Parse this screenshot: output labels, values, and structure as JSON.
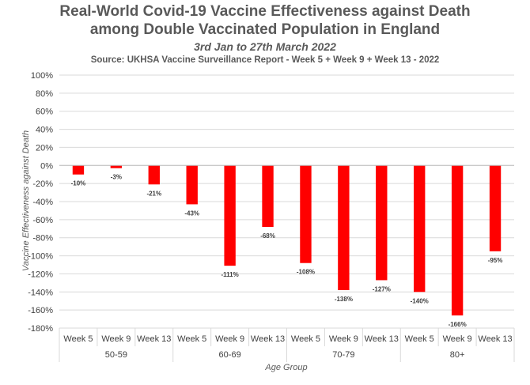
{
  "chart_data": {
    "type": "bar",
    "title": "Real-World Covid-19 Vaccine Effectiveness against Death",
    "title_line2": "among Double Vaccinated Population in England",
    "subtitle": "3rd Jan to 27th March 2022",
    "source": "Source: UKHSA Vaccine Surveillance Report - Week 5 + Week 9 + Week 13 - 2022",
    "xlabel": "Age Group",
    "ylabel": "Vaccine Effectiveness against Death",
    "ylim": [
      -180,
      100
    ],
    "ytick_step": 20,
    "ytick_suffix": "%",
    "grid": true,
    "bar_color": "#ff0000",
    "groups": [
      {
        "name": "50-59",
        "categories": [
          "Week 5",
          "Week 9",
          "Week 13"
        ],
        "values": [
          -10,
          -3,
          -21
        ],
        "labels": [
          "-10%",
          "-3%",
          "-21%"
        ]
      },
      {
        "name": "60-69",
        "categories": [
          "Week 5",
          "Week 9",
          "Week 13"
        ],
        "values": [
          -43,
          -111,
          -68
        ],
        "labels": [
          "-43%",
          "-111%",
          "-68%"
        ]
      },
      {
        "name": "70-79",
        "categories": [
          "Week 5",
          "Week 9",
          "Week 13"
        ],
        "values": [
          -108,
          -138,
          -127
        ],
        "labels": [
          "-108%",
          "-138%",
          "-127%"
        ]
      },
      {
        "name": "80+",
        "categories": [
          "Week 5",
          "Week 9",
          "Week 13"
        ],
        "values": [
          -140,
          -166,
          -95
        ],
        "labels": [
          "-140%",
          "-166%",
          "-95%"
        ]
      }
    ]
  }
}
